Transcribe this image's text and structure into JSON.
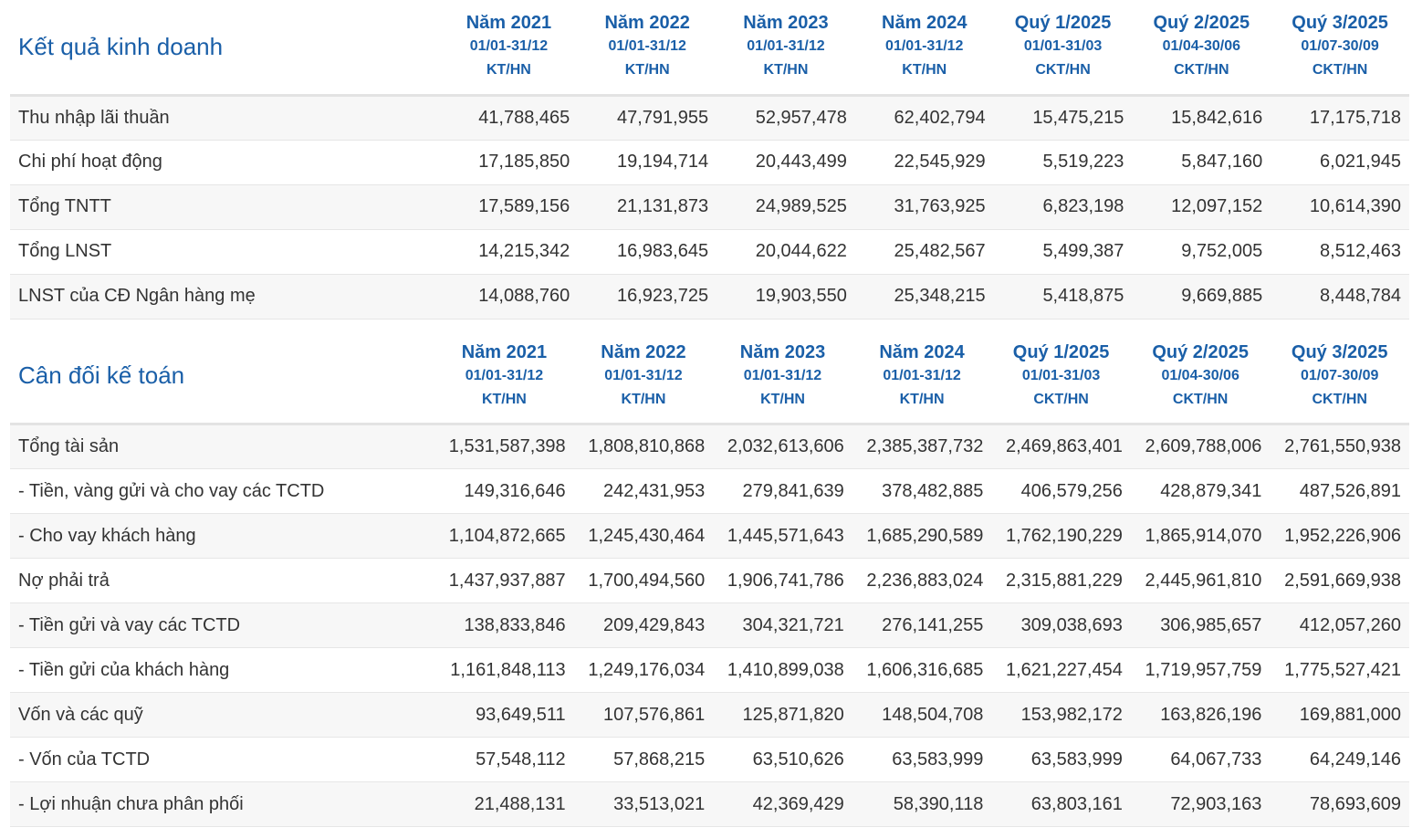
{
  "income": {
    "title": "Kết quả kinh doanh",
    "columns": [
      {
        "period": "Năm 2021",
        "range": "01/01-31/12",
        "type": "KT/HN"
      },
      {
        "period": "Năm 2022",
        "range": "01/01-31/12",
        "type": "KT/HN"
      },
      {
        "period": "Năm 2023",
        "range": "01/01-31/12",
        "type": "KT/HN"
      },
      {
        "period": "Năm 2024",
        "range": "01/01-31/12",
        "type": "KT/HN"
      },
      {
        "period": "Quý 1/2025",
        "range": "01/01-31/03",
        "type": "CKT/HN"
      },
      {
        "period": "Quý 2/2025",
        "range": "01/04-30/06",
        "type": "CKT/HN"
      },
      {
        "period": "Quý 3/2025",
        "range": "01/07-30/09",
        "type": "CKT/HN"
      }
    ],
    "rows": [
      {
        "label": "Thu nhập lãi thuần",
        "values": [
          "41,788,465",
          "47,791,955",
          "52,957,478",
          "62,402,794",
          "15,475,215",
          "15,842,616",
          "17,175,718"
        ]
      },
      {
        "label": "Chi phí hoạt động",
        "values": [
          "17,185,850",
          "19,194,714",
          "20,443,499",
          "22,545,929",
          "5,519,223",
          "5,847,160",
          "6,021,945"
        ]
      },
      {
        "label": "Tổng TNTT",
        "values": [
          "17,589,156",
          "21,131,873",
          "24,989,525",
          "31,763,925",
          "6,823,198",
          "12,097,152",
          "10,614,390"
        ]
      },
      {
        "label": "Tổng LNST",
        "values": [
          "14,215,342",
          "16,983,645",
          "20,044,622",
          "25,482,567",
          "5,499,387",
          "9,752,005",
          "8,512,463"
        ]
      },
      {
        "label": "LNST của CĐ Ngân hàng mẹ",
        "values": [
          "14,088,760",
          "16,923,725",
          "19,903,550",
          "25,348,215",
          "5,418,875",
          "9,669,885",
          "8,448,784"
        ]
      }
    ]
  },
  "balance": {
    "title": "Cân đối kế toán",
    "columns": [
      {
        "period": "Năm 2021",
        "range": "01/01-31/12",
        "type": "KT/HN"
      },
      {
        "period": "Năm 2022",
        "range": "01/01-31/12",
        "type": "KT/HN"
      },
      {
        "period": "Năm 2023",
        "range": "01/01-31/12",
        "type": "KT/HN"
      },
      {
        "period": "Năm 2024",
        "range": "01/01-31/12",
        "type": "KT/HN"
      },
      {
        "period": "Quý 1/2025",
        "range": "01/01-31/03",
        "type": "CKT/HN"
      },
      {
        "period": "Quý 2/2025",
        "range": "01/04-30/06",
        "type": "CKT/HN"
      },
      {
        "period": "Quý 3/2025",
        "range": "01/07-30/09",
        "type": "CKT/HN"
      }
    ],
    "rows": [
      {
        "label": "Tổng tài sản",
        "values": [
          "1,531,587,398",
          "1,808,810,868",
          "2,032,613,606",
          "2,385,387,732",
          "2,469,863,401",
          "2,609,788,006",
          "2,761,550,938"
        ]
      },
      {
        "label": "- Tiền, vàng gửi và cho vay các TCTD",
        "values": [
          "149,316,646",
          "242,431,953",
          "279,841,639",
          "378,482,885",
          "406,579,256",
          "428,879,341",
          "487,526,891"
        ]
      },
      {
        "label": "- Cho vay khách hàng",
        "values": [
          "1,104,872,665",
          "1,245,430,464",
          "1,445,571,643",
          "1,685,290,589",
          "1,762,190,229",
          "1,865,914,070",
          "1,952,226,906"
        ]
      },
      {
        "label": "Nợ phải trả",
        "values": [
          "1,437,937,887",
          "1,700,494,560",
          "1,906,741,786",
          "2,236,883,024",
          "2,315,881,229",
          "2,445,961,810",
          "2,591,669,938"
        ]
      },
      {
        "label": "- Tiền gửi và vay các TCTD",
        "values": [
          "138,833,846",
          "209,429,843",
          "304,321,721",
          "276,141,255",
          "309,038,693",
          "306,985,657",
          "412,057,260"
        ]
      },
      {
        "label": "- Tiền gửi của khách hàng",
        "values": [
          "1,161,848,113",
          "1,249,176,034",
          "1,410,899,038",
          "1,606,316,685",
          "1,621,227,454",
          "1,719,957,759",
          "1,775,527,421"
        ]
      },
      {
        "label": "Vốn và các quỹ",
        "values": [
          "93,649,511",
          "107,576,861",
          "125,871,820",
          "148,504,708",
          "153,982,172",
          "163,826,196",
          "169,881,000"
        ]
      },
      {
        "label": "- Vốn của TCTD",
        "values": [
          "57,548,112",
          "57,868,215",
          "63,510,626",
          "63,583,999",
          "63,583,999",
          "64,067,733",
          "64,249,146"
        ]
      },
      {
        "label": "- Lợi nhuận chưa phân phối",
        "values": [
          "21,488,131",
          "33,513,021",
          "42,369,429",
          "58,390,118",
          "63,803,161",
          "72,903,163",
          "78,693,609"
        ]
      }
    ]
  }
}
